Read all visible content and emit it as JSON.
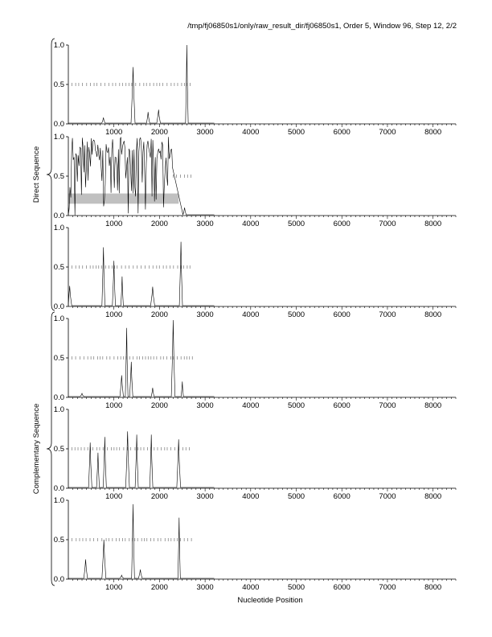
{
  "header": {
    "title": "/tmp/fj06850s1/only/raw_result_dir/fj06850s1, Order 5, Window 96, Step 12, 2/2"
  },
  "figure": {
    "xlabel": "Nucleotide Position",
    "group_labels": [
      "Direct Sequence",
      "Complementary Sequence"
    ]
  },
  "colors": {
    "trace": "#000000",
    "orf_marks": "#777777",
    "highlight": "#c0c0c0",
    "axis": "#000000"
  },
  "chart_data": {
    "type": "line",
    "xlim": [
      0,
      8500
    ],
    "ylim": [
      0,
      1
    ],
    "x_ticks": [
      1000,
      2000,
      3000,
      4000,
      5000,
      6000,
      7000,
      8000
    ],
    "y_ticks": [
      "0.0",
      "0.5",
      "1.0"
    ],
    "panels": [
      {
        "id": "direct-frame-1",
        "group": "Direct Sequence",
        "orf_level": 0.5,
        "orf_range": [
          80,
          2700
        ],
        "highlight": null,
        "peaks": [
          [
            770,
            0.08
          ],
          [
            1420,
            0.72
          ],
          [
            1750,
            0.15
          ],
          [
            1980,
            0.18
          ],
          [
            2600,
            1.0
          ]
        ],
        "baseline": 0.01
      },
      {
        "id": "direct-frame-2",
        "group": "Direct Sequence",
        "orf_level": 0.5,
        "orf_range": [
          2300,
          2700
        ],
        "highlight": {
          "x_start": 0,
          "x_end": 2420,
          "y_low": 0.15,
          "y_high": 0.28
        },
        "dense_region": [
          0,
          2300
        ],
        "peaks": [
          [
            2550,
            0.1
          ]
        ],
        "baseline": 0.01
      },
      {
        "id": "direct-frame-3",
        "group": "Direct Sequence",
        "orf_level": 0.5,
        "orf_range": [
          80,
          2700
        ],
        "highlight": null,
        "peaks": [
          [
            30,
            0.26
          ],
          [
            770,
            0.75
          ],
          [
            1000,
            0.58
          ],
          [
            1180,
            0.38
          ],
          [
            1850,
            0.25
          ],
          [
            2470,
            0.82
          ]
        ],
        "baseline": 0.01
      },
      {
        "id": "complementary-frame-1",
        "group": "Complementary Sequence",
        "orf_level": 0.5,
        "orf_range": [
          80,
          2750
        ],
        "highlight": null,
        "peaks": [
          [
            300,
            0.05
          ],
          [
            1170,
            0.28
          ],
          [
            1280,
            0.88
          ],
          [
            1380,
            0.45
          ],
          [
            1850,
            0.12
          ],
          [
            2300,
            0.98
          ],
          [
            2500,
            0.2
          ]
        ],
        "baseline": 0.01
      },
      {
        "id": "complementary-frame-2",
        "group": "Complementary Sequence",
        "orf_level": 0.5,
        "orf_range": [
          80,
          2700
        ],
        "highlight": null,
        "peaks": [
          [
            480,
            0.58
          ],
          [
            650,
            0.45
          ],
          [
            800,
            0.65
          ],
          [
            1300,
            0.72
          ],
          [
            1500,
            0.68
          ],
          [
            1820,
            0.68
          ],
          [
            2420,
            0.62
          ]
        ],
        "baseline": 0.01
      },
      {
        "id": "complementary-frame-3",
        "group": "Complementary Sequence",
        "orf_level": 0.5,
        "orf_range": [
          80,
          2750
        ],
        "highlight": null,
        "peaks": [
          [
            380,
            0.25
          ],
          [
            780,
            0.5
          ],
          [
            1170,
            0.05
          ],
          [
            1420,
            0.95
          ],
          [
            1580,
            0.12
          ],
          [
            2430,
            0.78
          ]
        ],
        "baseline": 0.01
      }
    ]
  }
}
